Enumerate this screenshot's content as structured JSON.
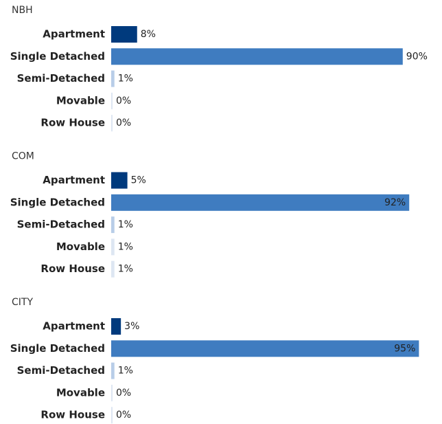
{
  "chart_data": [
    {
      "type": "bar",
      "orientation": "horizontal",
      "title": "NBH",
      "categories": [
        "Apartment",
        "Single Detached",
        "Semi-Detached",
        "Movable",
        "Row House"
      ],
      "values": [
        8,
        90,
        1,
        0,
        0
      ],
      "value_labels": [
        "8%",
        "90%",
        "1%",
        "0%",
        "0%"
      ],
      "colors": [
        "#003a7d",
        "#3f7cc0",
        "#b8cde8",
        "#dde6f2",
        "#dde6f2"
      ],
      "xlim": [
        0,
        100
      ]
    },
    {
      "type": "bar",
      "orientation": "horizontal",
      "title": "COM",
      "categories": [
        "Apartment",
        "Single Detached",
        "Semi-Detached",
        "Movable",
        "Row House"
      ],
      "values": [
        5,
        92,
        1,
        1,
        1
      ],
      "value_labels": [
        "5%",
        "92%",
        "1%",
        "1%",
        "1%"
      ],
      "colors": [
        "#003a7d",
        "#3f7cc0",
        "#b8cde8",
        "#dde6f2",
        "#dde6f2"
      ],
      "xlim": [
        0,
        100
      ]
    },
    {
      "type": "bar",
      "orientation": "horizontal",
      "title": "CITY",
      "categories": [
        "Apartment",
        "Single Detached",
        "Semi-Detached",
        "Movable",
        "Row House"
      ],
      "values": [
        3,
        95,
        1,
        0,
        0
      ],
      "value_labels": [
        "3%",
        "95%",
        "1%",
        "0%",
        "0%"
      ],
      "colors": [
        "#003a7d",
        "#3f7cc0",
        "#b8cde8",
        "#dde6f2",
        "#dde6f2"
      ],
      "xlim": [
        0,
        100
      ]
    }
  ]
}
